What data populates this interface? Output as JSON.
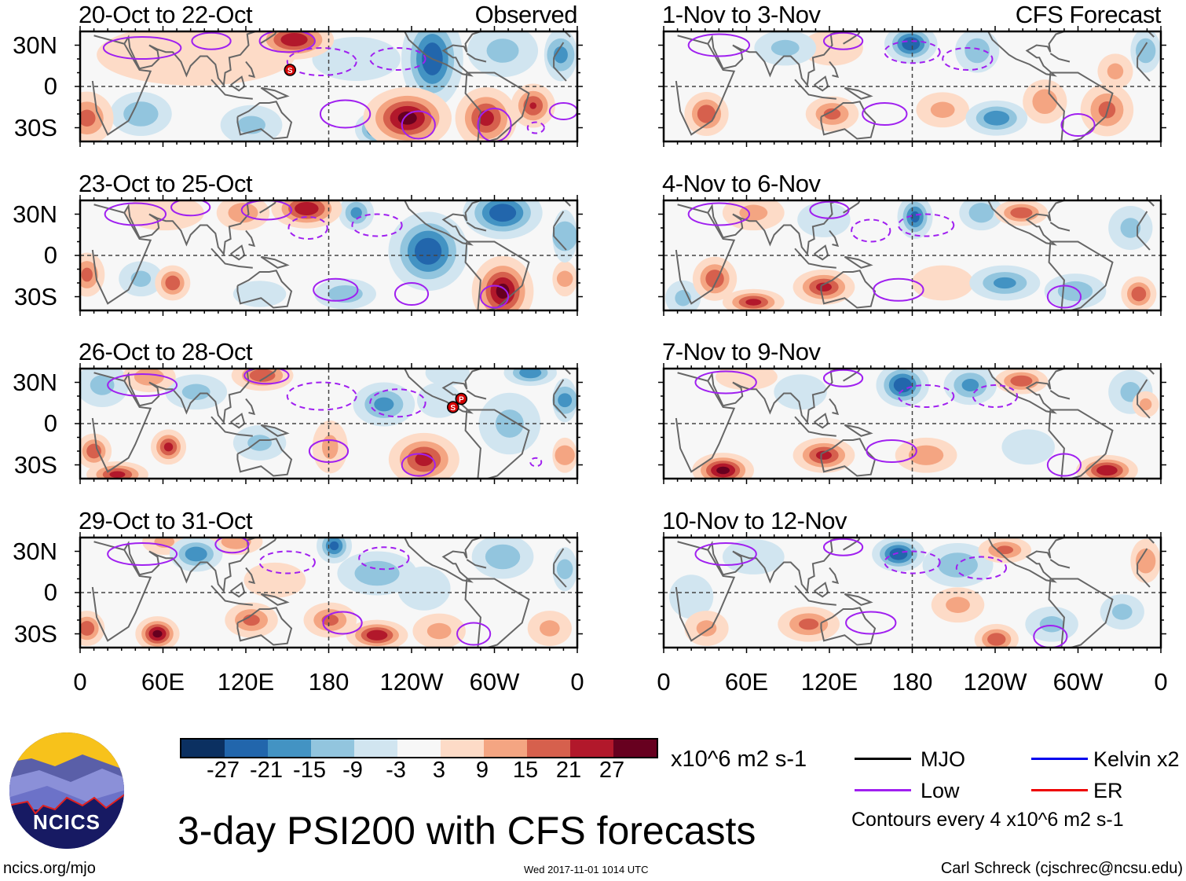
{
  "panels": [
    {
      "title": "20-Oct to 22-Oct",
      "label": "Observed",
      "blobs": [
        [
          155,
          34,
          27,
          18,
          9
        ],
        [
          5,
          -23,
          18,
          12,
          12
        ],
        [
          44,
          -20,
          -15,
          14,
          10
        ],
        [
          124,
          -28,
          -12,
          14,
          9
        ],
        [
          84,
          23,
          8,
          45,
          14
        ],
        [
          255,
          20,
          -27,
          14,
          22
        ],
        [
          215,
          -31,
          -24,
          10,
          8
        ],
        [
          237,
          -23,
          30,
          20,
          14
        ],
        [
          294,
          -23,
          24,
          14,
          14
        ],
        [
          328,
          -14,
          22,
          10,
          10
        ],
        [
          348,
          23,
          -18,
          10,
          12
        ],
        [
          306,
          26,
          -12,
          16,
          12
        ],
        [
          200,
          20,
          -6,
          20,
          10
        ]
      ],
      "contours": [
        [
          45,
          28,
          28,
          8,
          0
        ],
        [
          95,
          33,
          14,
          6,
          0
        ],
        [
          150,
          33,
          20,
          8,
          0
        ],
        [
          192,
          -20,
          18,
          10,
          0
        ],
        [
          245,
          -28,
          12,
          10,
          0
        ],
        [
          300,
          -28,
          12,
          12,
          0
        ],
        [
          350,
          -18,
          10,
          6,
          0
        ],
        [
          175,
          18,
          25,
          10,
          1
        ],
        [
          230,
          20,
          20,
          8,
          1
        ],
        [
          330,
          -30,
          6,
          4,
          1
        ]
      ],
      "storms": [
        {
          "name": "S",
          "lon": 152,
          "lat": 12
        }
      ]
    },
    {
      "title": "23-Oct to 25-Oct",
      "label": "",
      "blobs": [
        [
          164,
          34,
          27,
          16,
          9
        ],
        [
          118,
          31,
          15,
          12,
          8
        ],
        [
          252,
          3,
          -27,
          18,
          18
        ],
        [
          306,
          31,
          -27,
          18,
          12
        ],
        [
          306,
          -26,
          30,
          14,
          16
        ],
        [
          67,
          -20,
          21,
          8,
          8
        ],
        [
          5,
          -14,
          18,
          8,
          10
        ],
        [
          44,
          -17,
          -12,
          10,
          8
        ],
        [
          200,
          31,
          -18,
          8,
          8
        ],
        [
          192,
          -28,
          -15,
          14,
          7
        ],
        [
          130,
          -28,
          -9,
          12,
          6
        ],
        [
          61,
          31,
          9,
          18,
          8
        ],
        [
          351,
          14,
          -15,
          10,
          12
        ],
        [
          351,
          -17,
          12,
          8,
          8
        ]
      ],
      "contours": [
        [
          40,
          30,
          22,
          8,
          0
        ],
        [
          80,
          35,
          14,
          6,
          0
        ],
        [
          135,
          33,
          18,
          7,
          0
        ],
        [
          185,
          -25,
          16,
          8,
          0
        ],
        [
          240,
          -28,
          12,
          8,
          0
        ],
        [
          165,
          20,
          14,
          8,
          1
        ],
        [
          215,
          22,
          18,
          8,
          1
        ],
        [
          300,
          -30,
          10,
          8,
          0
        ]
      ],
      "storms": []
    },
    {
      "title": "26-Oct to 28-Oct",
      "label": "",
      "blobs": [
        [
          132,
          35,
          21,
          14,
          7
        ],
        [
          50,
          34,
          15,
          12,
          7
        ],
        [
          16,
          28,
          -12,
          12,
          10
        ],
        [
          84,
          23,
          -12,
          14,
          8
        ],
        [
          64,
          -17,
          24,
          8,
          8
        ],
        [
          10,
          -20,
          21,
          8,
          8
        ],
        [
          27,
          -37,
          24,
          14,
          6
        ],
        [
          130,
          -14,
          -12,
          12,
          8
        ],
        [
          220,
          14,
          -18,
          14,
          10
        ],
        [
          260,
          17,
          -9,
          10,
          8
        ],
        [
          249,
          -26,
          24,
          16,
          12
        ],
        [
          181,
          -17,
          12,
          8,
          12
        ],
        [
          311,
          0,
          -12,
          14,
          14
        ],
        [
          326,
          37,
          -21,
          12,
          6
        ],
        [
          351,
          17,
          -18,
          10,
          10
        ],
        [
          351,
          -23,
          15,
          8,
          8
        ],
        [
          266,
          37,
          -9,
          10,
          6
        ]
      ],
      "contours": [
        [
          45,
          28,
          25,
          8,
          0
        ],
        [
          135,
          35,
          16,
          6,
          0
        ],
        [
          180,
          -20,
          14,
          8,
          0
        ],
        [
          245,
          -30,
          12,
          8,
          0
        ],
        [
          175,
          20,
          25,
          10,
          1
        ],
        [
          230,
          15,
          20,
          10,
          1
        ],
        [
          330,
          -28,
          4,
          3,
          1
        ]
      ],
      "storms": [
        {
          "name": "P",
          "lon": 276,
          "lat": 18
        },
        {
          "name": "S",
          "lon": 270,
          "lat": 12
        }
      ]
    },
    {
      "title": "29-Oct to 31-Oct",
      "label": "",
      "blobs": [
        [
          56,
          -30,
          30,
          10,
          8
        ],
        [
          5,
          -26,
          21,
          8,
          8
        ],
        [
          84,
          28,
          -21,
          12,
          8
        ],
        [
          184,
          34,
          -24,
          8,
          8
        ],
        [
          113,
          37,
          15,
          12,
          6
        ],
        [
          61,
          37,
          12,
          10,
          6
        ],
        [
          124,
          -20,
          18,
          12,
          8
        ],
        [
          181,
          -20,
          18,
          12,
          8
        ],
        [
          215,
          -31,
          27,
          14,
          7
        ],
        [
          215,
          14,
          -15,
          18,
          10
        ],
        [
          249,
          3,
          -9,
          12,
          10
        ],
        [
          306,
          26,
          -15,
          14,
          10
        ],
        [
          351,
          17,
          -12,
          8,
          10
        ],
        [
          260,
          -28,
          12,
          12,
          8
        ],
        [
          340,
          -26,
          12,
          10,
          8
        ],
        [
          141,
          9,
          8,
          14,
          8
        ]
      ],
      "contours": [
        [
          45,
          28,
          25,
          8,
          0
        ],
        [
          110,
          35,
          12,
          6,
          0
        ],
        [
          190,
          -22,
          14,
          8,
          0
        ],
        [
          285,
          -30,
          12,
          8,
          0
        ],
        [
          150,
          22,
          20,
          8,
          1
        ],
        [
          220,
          25,
          18,
          8,
          1
        ]
      ],
      "storms": []
    },
    {
      "title": "1-Nov to 3-Nov",
      "label": "CFS Forecast",
      "blobs": [
        [
          179,
          31,
          -27,
          12,
          9
        ],
        [
          227,
          26,
          -15,
          10,
          10
        ],
        [
          88,
          28,
          -12,
          14,
          8
        ],
        [
          31,
          -20,
          21,
          10,
          10
        ],
        [
          122,
          -20,
          18,
          12,
          8
        ],
        [
          241,
          -23,
          -21,
          14,
          8
        ],
        [
          276,
          -11,
          15,
          10,
          10
        ],
        [
          321,
          -17,
          18,
          12,
          12
        ],
        [
          327,
          11,
          12,
          8,
          8
        ],
        [
          349,
          26,
          -15,
          8,
          10
        ],
        [
          122,
          28,
          9,
          14,
          8
        ],
        [
          202,
          -17,
          12,
          12,
          8
        ]
      ],
      "contours": [
        [
          40,
          30,
          22,
          8,
          0
        ],
        [
          130,
          33,
          14,
          6,
          0
        ],
        [
          160,
          -20,
          16,
          8,
          0
        ],
        [
          300,
          -28,
          12,
          8,
          0
        ],
        [
          180,
          25,
          20,
          8,
          1
        ],
        [
          220,
          20,
          18,
          8,
          1
        ]
      ],
      "storms": []
    },
    {
      "title": "4-Nov to 6-Nov",
      "label": "",
      "blobs": [
        [
          182,
          28,
          -24,
          8,
          10
        ],
        [
          230,
          31,
          -15,
          10,
          8
        ],
        [
          259,
          31,
          21,
          12,
          6
        ],
        [
          65,
          31,
          12,
          14,
          8
        ],
        [
          37,
          -17,
          21,
          10,
          10
        ],
        [
          65,
          -34,
          24,
          14,
          6
        ],
        [
          116,
          -23,
          24,
          14,
          8
        ],
        [
          247,
          -20,
          -18,
          16,
          8
        ],
        [
          298,
          -26,
          -15,
          14,
          8
        ],
        [
          344,
          -28,
          21,
          8,
          8
        ],
        [
          116,
          26,
          -9,
          12,
          8
        ],
        [
          338,
          20,
          -12,
          10,
          10
        ],
        [
          14,
          -31,
          -12,
          8,
          8
        ],
        [
          202,
          -20,
          9,
          14,
          8
        ]
      ],
      "contours": [
        [
          40,
          30,
          22,
          8,
          0
        ],
        [
          120,
          33,
          14,
          6,
          0
        ],
        [
          170,
          -25,
          18,
          8,
          0
        ],
        [
          290,
          -30,
          12,
          8,
          0
        ],
        [
          190,
          22,
          20,
          8,
          1
        ],
        [
          150,
          18,
          14,
          8,
          1
        ]
      ],
      "storms": []
    },
    {
      "title": "7-Nov to 9-Nov",
      "label": "",
      "blobs": [
        [
          173,
          28,
          -27,
          12,
          10
        ],
        [
          222,
          28,
          -18,
          12,
          9
        ],
        [
          259,
          31,
          21,
          12,
          6
        ],
        [
          43,
          -34,
          30,
          14,
          8
        ],
        [
          116,
          -23,
          24,
          14,
          8
        ],
        [
          190,
          -23,
          15,
          14,
          8
        ],
        [
          321,
          -34,
          27,
          14,
          7
        ],
        [
          264,
          -17,
          -9,
          12,
          8
        ],
        [
          99,
          23,
          -9,
          12,
          8
        ],
        [
          338,
          23,
          -12,
          10,
          10
        ],
        [
          349,
          14,
          12,
          6,
          6
        ],
        [
          60,
          34,
          9,
          14,
          6
        ]
      ],
      "contours": [
        [
          45,
          30,
          22,
          8,
          0
        ],
        [
          130,
          33,
          14,
          6,
          0
        ],
        [
          165,
          -20,
          18,
          8,
          0
        ],
        [
          290,
          -30,
          12,
          8,
          0
        ],
        [
          190,
          20,
          20,
          8,
          1
        ],
        [
          240,
          20,
          16,
          8,
          1
        ]
      ],
      "storms": []
    },
    {
      "title": "10-Nov to 12-Nov",
      "label": "",
      "blobs": [
        [
          170,
          28,
          -27,
          12,
          8
        ],
        [
          213,
          20,
          -15,
          16,
          10
        ],
        [
          247,
          31,
          18,
          12,
          6
        ],
        [
          105,
          -23,
          18,
          14,
          8
        ],
        [
          213,
          -9,
          12,
          12,
          8
        ],
        [
          241,
          -34,
          21,
          10,
          7
        ],
        [
          281,
          -23,
          -12,
          12,
          8
        ],
        [
          332,
          -14,
          -12,
          10,
          8
        ],
        [
          349,
          23,
          15,
          8,
          10
        ],
        [
          31,
          -26,
          12,
          10,
          8
        ],
        [
          65,
          26,
          -9,
          14,
          8
        ],
        [
          20,
          -3,
          -9,
          10,
          10
        ]
      ],
      "contours": [
        [
          45,
          28,
          22,
          8,
          0
        ],
        [
          130,
          33,
          14,
          6,
          0
        ],
        [
          150,
          -22,
          18,
          8,
          0
        ],
        [
          280,
          -32,
          12,
          8,
          0
        ],
        [
          180,
          22,
          20,
          8,
          1
        ],
        [
          230,
          18,
          18,
          8,
          1
        ]
      ],
      "storms": []
    }
  ],
  "lat_labels": [
    "30N",
    "0",
    "30S"
  ],
  "lon_labels": [
    "0",
    "60E",
    "120E",
    "180",
    "120W",
    "60W",
    "0"
  ],
  "colorbar": {
    "colors": [
      "#0b3061",
      "#2266ac",
      "#4393c3",
      "#92c5de",
      "#d1e5f0",
      "#f7f7f7",
      "#fddbc7",
      "#f4a582",
      "#d6604d",
      "#b2182b",
      "#67001f"
    ],
    "labels": [
      "-27",
      "-21",
      "-15",
      "-9",
      "-3",
      "3",
      "9",
      "15",
      "21",
      "27"
    ],
    "units": "x10^6 m2 s-1"
  },
  "legend": {
    "items": [
      {
        "label": "MJO",
        "color": "#000000"
      },
      {
        "label": "Kelvin x2",
        "color": "#0000ee"
      },
      {
        "label": "Low",
        "color": "#a020f0"
      },
      {
        "label": "ER",
        "color": "#ee0000"
      }
    ],
    "note": "Contours every 4 x10^6 m2 s-1"
  },
  "title": "3-day PSI200 with CFS forecasts",
  "footer": {
    "left": "ncics.org/mjo",
    "center": "Wed 2017-11-01 1014 UTC",
    "right": "Carl Schreck (cjschrec@ncsu.edu)"
  },
  "logo": {
    "text": "NCICS"
  }
}
